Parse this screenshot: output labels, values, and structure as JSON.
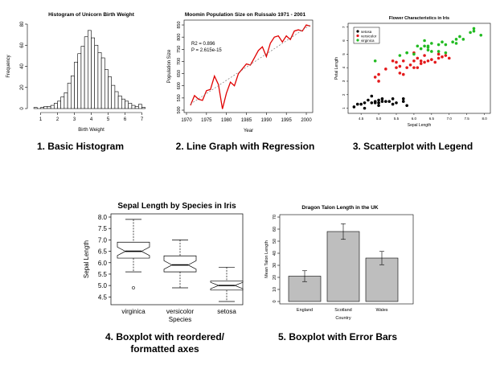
{
  "panels": [
    {
      "caption": "1. Basic Histogram",
      "chart_data": {
        "type": "bar",
        "title": "Histogram of Unicorn Birth Weight",
        "xlabel": "Birth Weight",
        "ylabel": "Frequency",
        "xlim": [
          0.5,
          7.5
        ],
        "ylim": [
          0,
          80
        ],
        "xticks": [
          1,
          2,
          3,
          4,
          5,
          6,
          7
        ],
        "yticks": [
          0,
          20,
          40,
          60,
          80
        ],
        "bin_width": 0.2,
        "bin_starts": [
          0.6,
          0.8,
          1.0,
          1.2,
          1.4,
          1.6,
          1.8,
          2.0,
          2.2,
          2.4,
          2.6,
          2.8,
          3.0,
          3.2,
          3.4,
          3.6,
          3.8,
          4.0,
          4.2,
          4.4,
          4.6,
          4.8,
          5.0,
          5.2,
          5.4,
          5.6,
          5.8,
          6.0,
          6.2,
          6.4,
          6.6,
          6.8,
          7.0
        ],
        "values": [
          1,
          0,
          1,
          2,
          2,
          3,
          5,
          7,
          11,
          15,
          24,
          31,
          44,
          52,
          59,
          68,
          74,
          67,
          60,
          53,
          48,
          37,
          30,
          22,
          16,
          12,
          9,
          7,
          5,
          3,
          2,
          4,
          1
        ]
      }
    },
    {
      "caption": "2. Line Graph with Regression",
      "chart_data": {
        "type": "line",
        "title": "Moomin Population Size on Ruissalo 1971 - 2001",
        "xlabel": "Year",
        "ylabel": "Population Size",
        "xlim": [
          1970,
          2001
        ],
        "ylim": [
          500,
          860
        ],
        "xticks": [
          1970,
          1975,
          1980,
          1985,
          1990,
          1995,
          2000
        ],
        "yticks": [
          500,
          550,
          600,
          650,
          700,
          750,
          800,
          850
        ],
        "annotations": [
          "R2 = 0.896",
          "P = 2.615e-15"
        ],
        "x": [
          1971,
          1972,
          1973,
          1974,
          1975,
          1976,
          1977,
          1978,
          1979,
          1980,
          1981,
          1982,
          1983,
          1984,
          1985,
          1986,
          1987,
          1988,
          1989,
          1990,
          1991,
          1992,
          1993,
          1994,
          1995,
          1996,
          1997,
          1998,
          1999,
          2000,
          2001
        ],
        "series": [
          {
            "values": [
              520,
              560,
              545,
              540,
              580,
              585,
              640,
              605,
              505,
              570,
              615,
              600,
              650,
              670,
              690,
              685,
              715,
              745,
              760,
              720,
              775,
              800,
              805,
              780,
              805,
              790,
              825,
              830,
              825,
              850,
              845
            ]
          }
        ],
        "regression": {
          "x": [
            1971,
            2001
          ],
          "y": [
            525,
            850
          ]
        }
      }
    },
    {
      "caption": "3. Scatterplot with Legend",
      "chart_data": {
        "type": "scatter",
        "title": "Flower Characteristics in Iris",
        "xlabel": "Sepal Length",
        "ylabel": "Petal Length",
        "xlim": [
          4.2,
          8.1
        ],
        "ylim": [
          0.8,
          7.1
        ],
        "xticks": [
          4.5,
          5.0,
          5.5,
          6.0,
          6.5,
          7.0,
          7.5,
          8.0
        ],
        "yticks": [
          1,
          2,
          3,
          4,
          5,
          6,
          7
        ],
        "legend_position": "top-left",
        "series": [
          {
            "name": "setosa",
            "color": "#000000",
            "x": [
              4.4,
              4.5,
              4.6,
              4.6,
              4.7,
              4.8,
              4.8,
              4.9,
              5.0,
              5.0,
              5.0,
              5.1,
              5.1,
              5.2,
              5.3,
              5.4,
              5.4,
              5.5,
              5.7,
              5.8,
              4.3,
              5.7,
              5.0,
              4.9
            ],
            "y": [
              1.3,
              1.3,
              1.4,
              1.0,
              1.6,
              1.4,
              1.9,
              1.5,
              1.6,
              1.2,
              1.4,
              1.5,
              1.7,
              1.5,
              1.5,
              1.7,
              1.3,
              1.4,
              1.5,
              1.2,
              1.1,
              1.7,
              1.4,
              1.4
            ]
          },
          {
            "name": "versicolor",
            "color": "#e41a1c",
            "x": [
              4.9,
              5.0,
              5.0,
              5.2,
              5.5,
              5.6,
              5.6,
              5.7,
              5.8,
              5.9,
              6.0,
              6.0,
              6.1,
              6.1,
              6.2,
              6.3,
              6.4,
              6.5,
              6.6,
              6.7,
              6.8,
              6.9,
              7.0,
              5.4,
              5.7,
              6.2,
              6.3,
              6.7,
              6.0,
              5.5
            ],
            "y": [
              3.3,
              3.5,
              3.0,
              3.9,
              4.0,
              4.1,
              3.6,
              4.5,
              4.0,
              4.2,
              4.5,
              4.0,
              4.7,
              4.0,
              4.3,
              4.9,
              4.5,
              4.6,
              4.4,
              4.7,
              4.8,
              4.9,
              4.7,
              4.5,
              3.5,
              4.5,
              4.4,
              5.0,
              5.1,
              4.4
            ]
          },
          {
            "name": "virginica",
            "color": "#22bb22",
            "x": [
              4.9,
              5.6,
              5.8,
              6.0,
              6.1,
              6.3,
              6.3,
              6.4,
              6.4,
              6.5,
              6.7,
              6.7,
              6.8,
              6.9,
              7.1,
              7.2,
              7.2,
              7.3,
              7.4,
              7.6,
              7.7,
              7.7,
              7.9,
              6.2,
              6.5,
              5.8,
              6.9,
              6.4
            ],
            "y": [
              4.5,
              4.9,
              5.1,
              5.0,
              5.6,
              5.6,
              6.0,
              5.3,
              5.5,
              5.8,
              5.7,
              5.2,
              5.9,
              5.7,
              5.9,
              6.1,
              5.8,
              6.3,
              6.1,
              6.6,
              6.7,
              6.9,
              6.4,
              5.4,
              5.2,
              5.1,
              5.1,
              5.6
            ]
          }
        ]
      }
    },
    {
      "caption": "4. Boxplot with reordered/ formatted axes",
      "chart_data": {
        "type": "box",
        "title": "Sepal Length by Species in Iris",
        "xlabel": "Species",
        "ylabel": "Sepal Length",
        "ylim": [
          4.3,
          8.0
        ],
        "yticks": [
          "4.5",
          "5.0",
          "5.5",
          "6.0",
          "6.5",
          "7.0",
          "7.5",
          "8.0"
        ],
        "notched": true,
        "categories": [
          "virginica",
          "versicolor",
          "setosa"
        ],
        "stats": [
          {
            "min": 5.6,
            "q1": 6.2,
            "median": 6.5,
            "q3": 6.9,
            "max": 7.9,
            "outliers": [
              4.9
            ]
          },
          {
            "min": 4.9,
            "q1": 5.6,
            "median": 5.9,
            "q3": 6.3,
            "max": 7.0,
            "outliers": []
          },
          {
            "min": 4.3,
            "q1": 4.8,
            "median": 5.0,
            "q3": 5.2,
            "max": 5.8,
            "outliers": []
          }
        ]
      }
    },
    {
      "caption": "5. Boxplot with Error Bars",
      "chart_data": {
        "type": "bar",
        "title": "Dragon Talon Length in the UK",
        "xlabel": "Country",
        "ylabel": "Mean Talon Length",
        "ylim": [
          0,
          70
        ],
        "yticks": [
          0,
          10,
          20,
          30,
          40,
          50,
          60,
          70
        ],
        "categories": [
          "England",
          "Scotland",
          "Wales"
        ],
        "values": [
          21,
          58,
          36
        ],
        "errors": [
          4.5,
          6.5,
          5.5
        ],
        "bar_color": "#bebebe"
      }
    }
  ]
}
